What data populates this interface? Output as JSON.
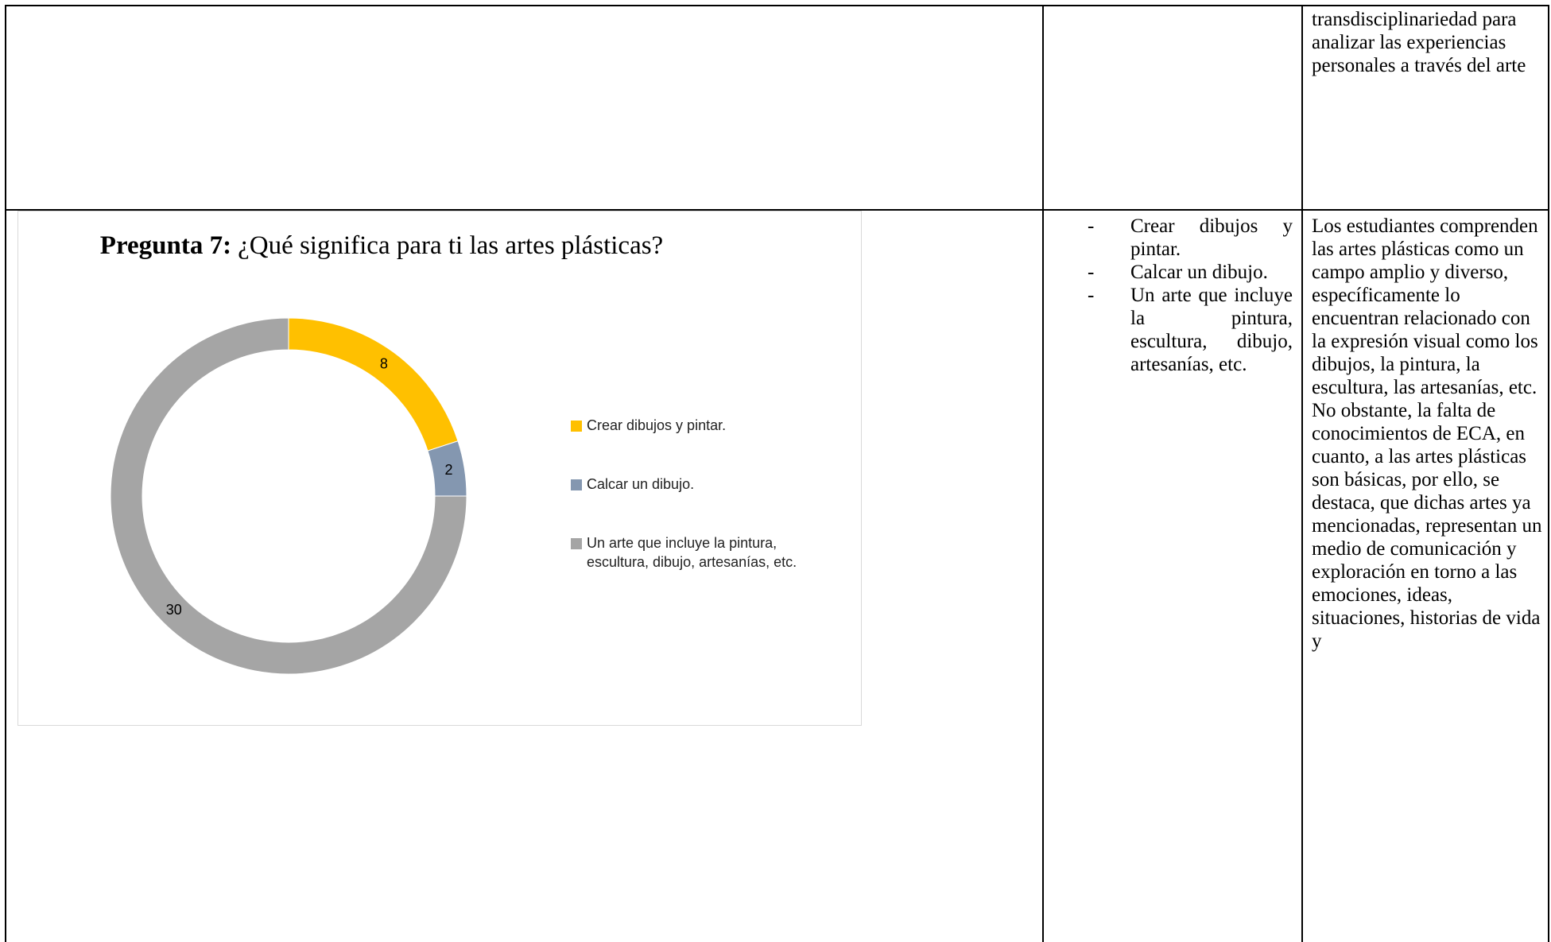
{
  "table": {
    "rows": [
      [
        "",
        "",
        "transdisciplinariedad para analizar las experiencias personales a través del arte"
      ],
      [
        null,
        [
          "Crear dibujos y pintar.",
          "Calcar un dibujo.",
          "Un arte que incluye la pintura, escultura, dibujo, artesanías, etc."
        ],
        "Los estudiantes comprenden las artes plásticas como un campo amplio y diverso, específicamente lo encuentran relacionado con la expresión visual como los dibujos, la pintura, la escultura, las artesanías, etc. No obstante, la falta de conocimientos de ECA, en cuanto, a las artes plásticas son básicas, por ello, se destaca, que dichas artes ya mencionadas, representan un medio de comunicación y exploración en torno a las emociones, ideas, situaciones, historias de vida y"
      ]
    ]
  },
  "chart_data": {
    "type": "donut",
    "title_label": "Pregunta 7:",
    "title": "¿Qué significa para ti las artes plásticas?",
    "categories": [
      "Crear dibujos y pintar.",
      "Calcar un dibujo.",
      "Un arte que incluye la pintura, escultura, dibujo, artesanías, etc."
    ],
    "values": [
      8,
      2,
      30
    ],
    "colors": [
      "#FFC000",
      "#8497B0",
      "#A5A5A5"
    ],
    "legend": "right"
  }
}
